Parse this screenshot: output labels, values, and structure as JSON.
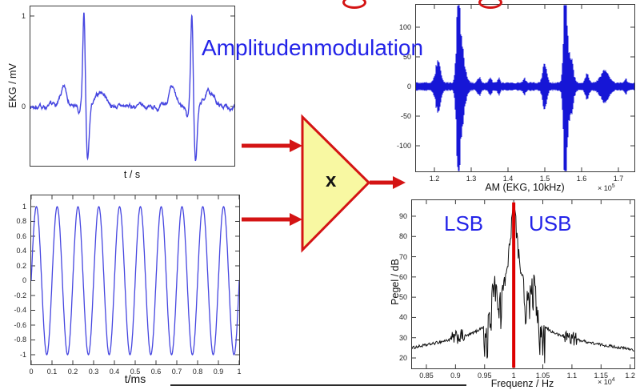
{
  "title": "Amplitudenmodulation",
  "multiplier": {
    "symbol": "x"
  },
  "colors": {
    "accent_blue": "#2323e8",
    "signal_blue": "#4646e0",
    "am_blue": "#1616d6",
    "diagram_red": "#d41414",
    "triangle_fill": "#f8f8a2",
    "spectrum_black": "#101010",
    "carrier_marker_red": "#dd0000"
  },
  "chart_data": [
    {
      "id": "ekg",
      "type": "line",
      "xlabel": "t / s",
      "ylabel": "EKG / mV",
      "xlim": [
        0,
        1
      ],
      "ylim": [
        -0.655,
        1.106
      ],
      "xticks": [],
      "yticks": [
        {
          "v": 1,
          "label": "1"
        },
        {
          "v": 0,
          "label": "0"
        }
      ],
      "series": [
        {
          "name": "ekg-signal",
          "color": "#4646e0",
          "beats": [
            0.263,
            0.792
          ],
          "waves": {
            "p": {
              "amp": 0.19,
              "offset": -0.098,
              "sigma": 0.016
            },
            "q": {
              "amp": -0.1,
              "offset": -0.024,
              "sigma": 0.005
            },
            "r": {
              "amp": 1.08,
              "offset": 0,
              "sigma": 0.006
            },
            "s": {
              "amp": -0.62,
              "offset": 0.017,
              "sigma": 0.008
            },
            "t": {
              "amp": 0.16,
              "offset": 0.085,
              "sigma": 0.024
            }
          },
          "noise_amp": 0.05
        }
      ]
    },
    {
      "id": "carrier",
      "type": "line",
      "xlabel": "t/ms",
      "ylabel": "",
      "xlim": [
        0,
        1
      ],
      "ylim": [
        -1.13,
        1.151
      ],
      "xticks": [
        {
          "v": 0,
          "label": "0"
        },
        {
          "v": 0.1,
          "label": "0.1"
        },
        {
          "v": 0.2,
          "label": "0.2"
        },
        {
          "v": 0.3,
          "label": "0.3"
        },
        {
          "v": 0.4,
          "label": "0.4"
        },
        {
          "v": 0.5,
          "label": "0.5"
        },
        {
          "v": 0.6,
          "label": "0.6"
        },
        {
          "v": 0.7,
          "label": "0.7"
        },
        {
          "v": 0.8,
          "label": "0.8"
        },
        {
          "v": 0.9,
          "label": "0.9"
        },
        {
          "v": 1,
          "label": "1"
        }
      ],
      "yticks": [
        {
          "v": 1,
          "label": "1"
        },
        {
          "v": 0.8,
          "label": "0.8"
        },
        {
          "v": 0.6,
          "label": "0.6"
        },
        {
          "v": 0.4,
          "label": "0.4"
        },
        {
          "v": 0.2,
          "label": "0.2"
        },
        {
          "v": 0,
          "label": "0"
        },
        {
          "v": -0.2,
          "label": "-0.2"
        },
        {
          "v": -0.4,
          "label": "-0.4"
        },
        {
          "v": -0.6,
          "label": "-0.6"
        },
        {
          "v": -0.8,
          "label": "-0.8"
        },
        {
          "v": -1,
          "label": "-1"
        }
      ],
      "series": [
        {
          "name": "carrier-sine",
          "color": "#4646e0",
          "cycles": 10,
          "amplitude": 1
        }
      ]
    },
    {
      "id": "am",
      "type": "line",
      "xlabel": "AM (EKG, 10kHz)",
      "ylabel": "",
      "x_scale_base": "× 10",
      "x_scale_exp": "5",
      "xlim": [
        1.15,
        1.7435
      ],
      "ylim": [
        -143.2,
        137.8
      ],
      "xticks": [
        {
          "v": 1.2,
          "label": "1.2"
        },
        {
          "v": 1.3,
          "label": "1.3"
        },
        {
          "v": 1.4,
          "label": "1.4"
        },
        {
          "v": 1.5,
          "label": "1.5"
        },
        {
          "v": 1.6,
          "label": "1.6"
        },
        {
          "v": 1.7,
          "label": "1.7"
        }
      ],
      "yticks": [
        {
          "v": 100,
          "label": "100"
        },
        {
          "v": 50,
          "label": "50"
        },
        {
          "v": 0,
          "label": "0"
        },
        {
          "v": -50,
          "label": "-50"
        },
        {
          "v": -100,
          "label": "-100"
        }
      ],
      "series": [
        {
          "name": "am-signal",
          "color": "#1616d6",
          "base_envelope": 5,
          "bursts": [
            [
              1.21,
              33,
              0.007
            ],
            [
              1.265,
              138,
              0.0045
            ],
            [
              1.2745,
              52,
              0.008
            ],
            [
              1.322,
              10,
              0.004
            ],
            [
              1.352,
              9,
              0.0035
            ],
            [
              1.375,
              8,
              0.003
            ],
            [
              1.445,
              7,
              0.004
            ],
            [
              1.5,
              30,
              0.0055
            ],
            [
              1.5555,
              138,
              0.0045
            ],
            [
              1.568,
              48,
              0.0075
            ],
            [
              1.615,
              14,
              0.005
            ],
            [
              1.662,
              19,
              0.011
            ],
            [
              1.72,
              6,
              0.004
            ]
          ]
        }
      ]
    },
    {
      "id": "spectrum",
      "type": "line",
      "xlabel": "Frequenz / Hz",
      "ylabel": "Pegel / dB",
      "x_scale_base": "× 10",
      "x_scale_exp": "4",
      "xlim": [
        0.8253,
        1.2073
      ],
      "ylim": [
        14.86,
        97.9
      ],
      "xticks": [
        {
          "v": 0.85,
          "label": "0.85"
        },
        {
          "v": 0.9,
          "label": "0.9"
        },
        {
          "v": 0.95,
          "label": "0.95"
        },
        {
          "v": 1,
          "label": "1"
        },
        {
          "v": 1.05,
          "label": "1.05"
        },
        {
          "v": 1.1,
          "label": "1.1"
        },
        {
          "v": 1.15,
          "label": "1.15"
        },
        {
          "v": 1.2,
          "label": "1.2"
        }
      ],
      "yticks": [
        {
          "v": 90,
          "label": "90"
        },
        {
          "v": 80,
          "label": "80"
        },
        {
          "v": 70,
          "label": "70"
        },
        {
          "v": 60,
          "label": "60"
        },
        {
          "v": 50,
          "label": "50"
        },
        {
          "v": 40,
          "label": "40"
        },
        {
          "v": 30,
          "label": "30"
        },
        {
          "v": 20,
          "label": "20"
        }
      ],
      "sideband_labels": {
        "lsb": "LSB",
        "usb": "USB"
      },
      "carrier_marker": {
        "f": 1.0,
        "color": "#dd0000"
      },
      "series": [
        {
          "name": "am-spectrum",
          "color": "#101010",
          "keypoints": [
            [
              0.8253,
              25
            ],
            [
              0.86,
              27
            ],
            [
              0.89,
              29
            ],
            [
              0.905,
              30.5
            ],
            [
              0.92,
              31
            ],
            [
              0.935,
              33
            ],
            [
              0.948,
              35.5
            ],
            [
              0.952,
              37
            ],
            [
              0.958,
              45
            ],
            [
              0.9625,
              55
            ],
            [
              0.966,
              62
            ],
            [
              0.97,
              58
            ],
            [
              0.975,
              52
            ],
            [
              0.98,
              55
            ],
            [
              0.985,
              62
            ],
            [
              0.99,
              70
            ],
            [
              0.994,
              82
            ],
            [
              0.997,
              92
            ],
            [
              1.0,
              96
            ],
            [
              1.003,
              92
            ],
            [
              1.006,
              82
            ],
            [
              1.01,
              70
            ],
            [
              1.015,
              62
            ],
            [
              1.02,
              55
            ],
            [
              1.025,
              52
            ],
            [
              1.03,
              58
            ],
            [
              1.034,
              62
            ],
            [
              1.038,
              58
            ],
            [
              1.042,
              45
            ],
            [
              1.048,
              37
            ],
            [
              1.052,
              35.5
            ],
            [
              1.065,
              33
            ],
            [
              1.08,
              31
            ],
            [
              1.095,
              30.5
            ],
            [
              1.11,
              29
            ],
            [
              1.14,
              27
            ],
            [
              1.2073,
              24
            ]
          ]
        }
      ]
    }
  ]
}
